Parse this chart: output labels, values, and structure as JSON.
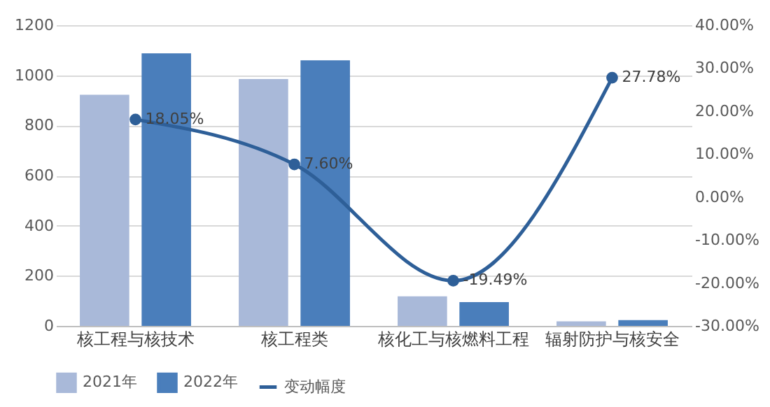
{
  "chart_data": {
    "type": "bar",
    "categories": [
      "核工程与核技术",
      "核工程类",
      "核化工与核燃料工程",
      "辐射防护与核安全"
    ],
    "series": [
      {
        "name": "2021年",
        "color": "#a9b9d9",
        "values": [
          922,
          985,
          118,
          18
        ]
      },
      {
        "name": "2022年",
        "color": "#4a7ebb",
        "values": [
          1088,
          1060,
          95,
          23
        ]
      },
      {
        "name": "变动幅度",
        "type": "line",
        "axis": "y2",
        "color": "#2e5f98",
        "marker": "circle",
        "values": [
          18.05,
          7.6,
          -19.49,
          27.78
        ],
        "value_labels": [
          "18.05%",
          "7.60%",
          "-19.49%",
          "27.78%"
        ]
      }
    ],
    "ylim": [
      0,
      1200
    ],
    "yticks": [
      0,
      200,
      400,
      600,
      800,
      1000,
      1200
    ],
    "y2lim": [
      -30,
      40
    ],
    "y2ticks": [
      {
        "value": -30,
        "label": "-30.00%"
      },
      {
        "value": -20,
        "label": "-20.00%"
      },
      {
        "value": -10,
        "label": "-10.00%"
      },
      {
        "value": 0,
        "label": "0.00%"
      },
      {
        "value": 10,
        "label": "10.00%"
      },
      {
        "value": 20,
        "label": "20.00%"
      },
      {
        "value": 30,
        "label": "30.00%"
      },
      {
        "value": 40,
        "label": "40.00%"
      }
    ],
    "grid": "y",
    "legend": "bottom"
  }
}
